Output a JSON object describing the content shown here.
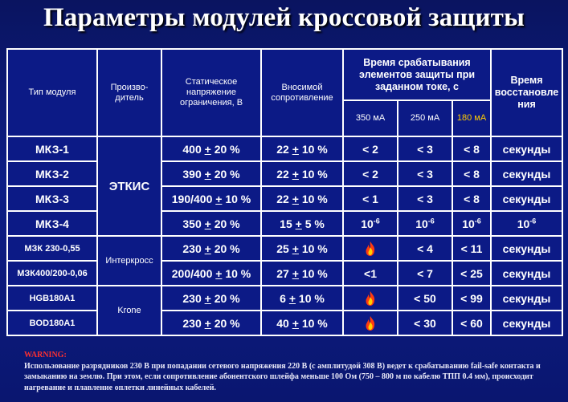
{
  "title": "Параметры модулей кроссовой защиты",
  "headers": {
    "type": "Тип модуля",
    "maker": "Произво-дитель",
    "voltage": "Статическое напряжение ограничения, В",
    "resistance": "Вносимой сопротивление",
    "response_time": "Время срабатывания элементов защиты при заданном токе, с",
    "recovery": "Время восстановле ния",
    "current_350": "350 мА",
    "current_250": "250 мА",
    "current_180": "180 мА"
  },
  "colors": {
    "background": "#0d1e86",
    "highlight_current": "#ffcc00",
    "warning_header": "#ff3030"
  },
  "makers": {
    "etkis": "ЭТКИС",
    "interkross": "Интеркросс",
    "krone": "Krone"
  },
  "rows": [
    {
      "type": "МКЗ-1",
      "volt_a": "400",
      "volt_b": "20 %",
      "res_a": "22",
      "res_b": "10 %",
      "t350": "< 2",
      "t250": "< 3",
      "t180": "< 8",
      "recovery": "секунды"
    },
    {
      "type": "МКЗ-2",
      "volt_a": "390",
      "volt_b": "20 %",
      "res_a": "22",
      "res_b": "10 %",
      "t350": "< 2",
      "t250": "< 3",
      "t180": "< 8",
      "recovery": "секунды"
    },
    {
      "type": "МКЗ-3",
      "volt_a": "190/400",
      "volt_b": "10 %",
      "res_a": "22",
      "res_b": "10 %",
      "t350": "< 1",
      "t250": "< 3",
      "t180": "< 8",
      "recovery": "секунды"
    },
    {
      "type": "МКЗ-4",
      "volt_a": "350",
      "volt_b": "20 %",
      "res_a": "15",
      "res_b": "5 %",
      "t350": "10",
      "t250": "10",
      "t180": "10",
      "recovery": "10",
      "exp": "-6"
    },
    {
      "type": "МЗК 230-0,55",
      "volt_a": "230",
      "volt_b": "20 %",
      "res_a": "25",
      "res_b": "10 %",
      "t350": "fire-icon",
      "t250": "< 4",
      "t180": "< 11",
      "recovery": "секунды"
    },
    {
      "type": "МЗК400/200-0,06",
      "volt_a": "200/400",
      "volt_b": "10 %",
      "res_a": "27",
      "res_b": "10 %",
      "t350": "<1",
      "t250": "< 7",
      "t180": "< 25",
      "recovery": "секунды"
    },
    {
      "type": "HGB180A1",
      "volt_a": "230",
      "volt_b": "20 %",
      "res_a": "6",
      "res_b": "10 %",
      "t350": "fire-icon",
      "t250": "< 50",
      "t180": "< 99",
      "recovery": "секунды"
    },
    {
      "type": "BOD180A1",
      "volt_a": "230",
      "volt_b": "20 %",
      "res_a": "40",
      "res_b": "10 %",
      "t350": "fire-icon",
      "t250": "< 30",
      "t180": "< 60",
      "recovery": "секунды"
    }
  ],
  "plus_sign": "+",
  "warning": {
    "header": "WARNING:",
    "text": "Использование разрядников 230 В при попадании сетевого напряжения 220 В (с амплитудой 308 В) ведет к срабатыванию fail-safe контакта и замыканию на землю. При этом, если сопротивление абонентского шлейфа меньше 100 Ом (750 – 800 м по кабелю ТПП 0.4 мм), происходит нагревание и плавление оплетки линейных кабелей."
  }
}
